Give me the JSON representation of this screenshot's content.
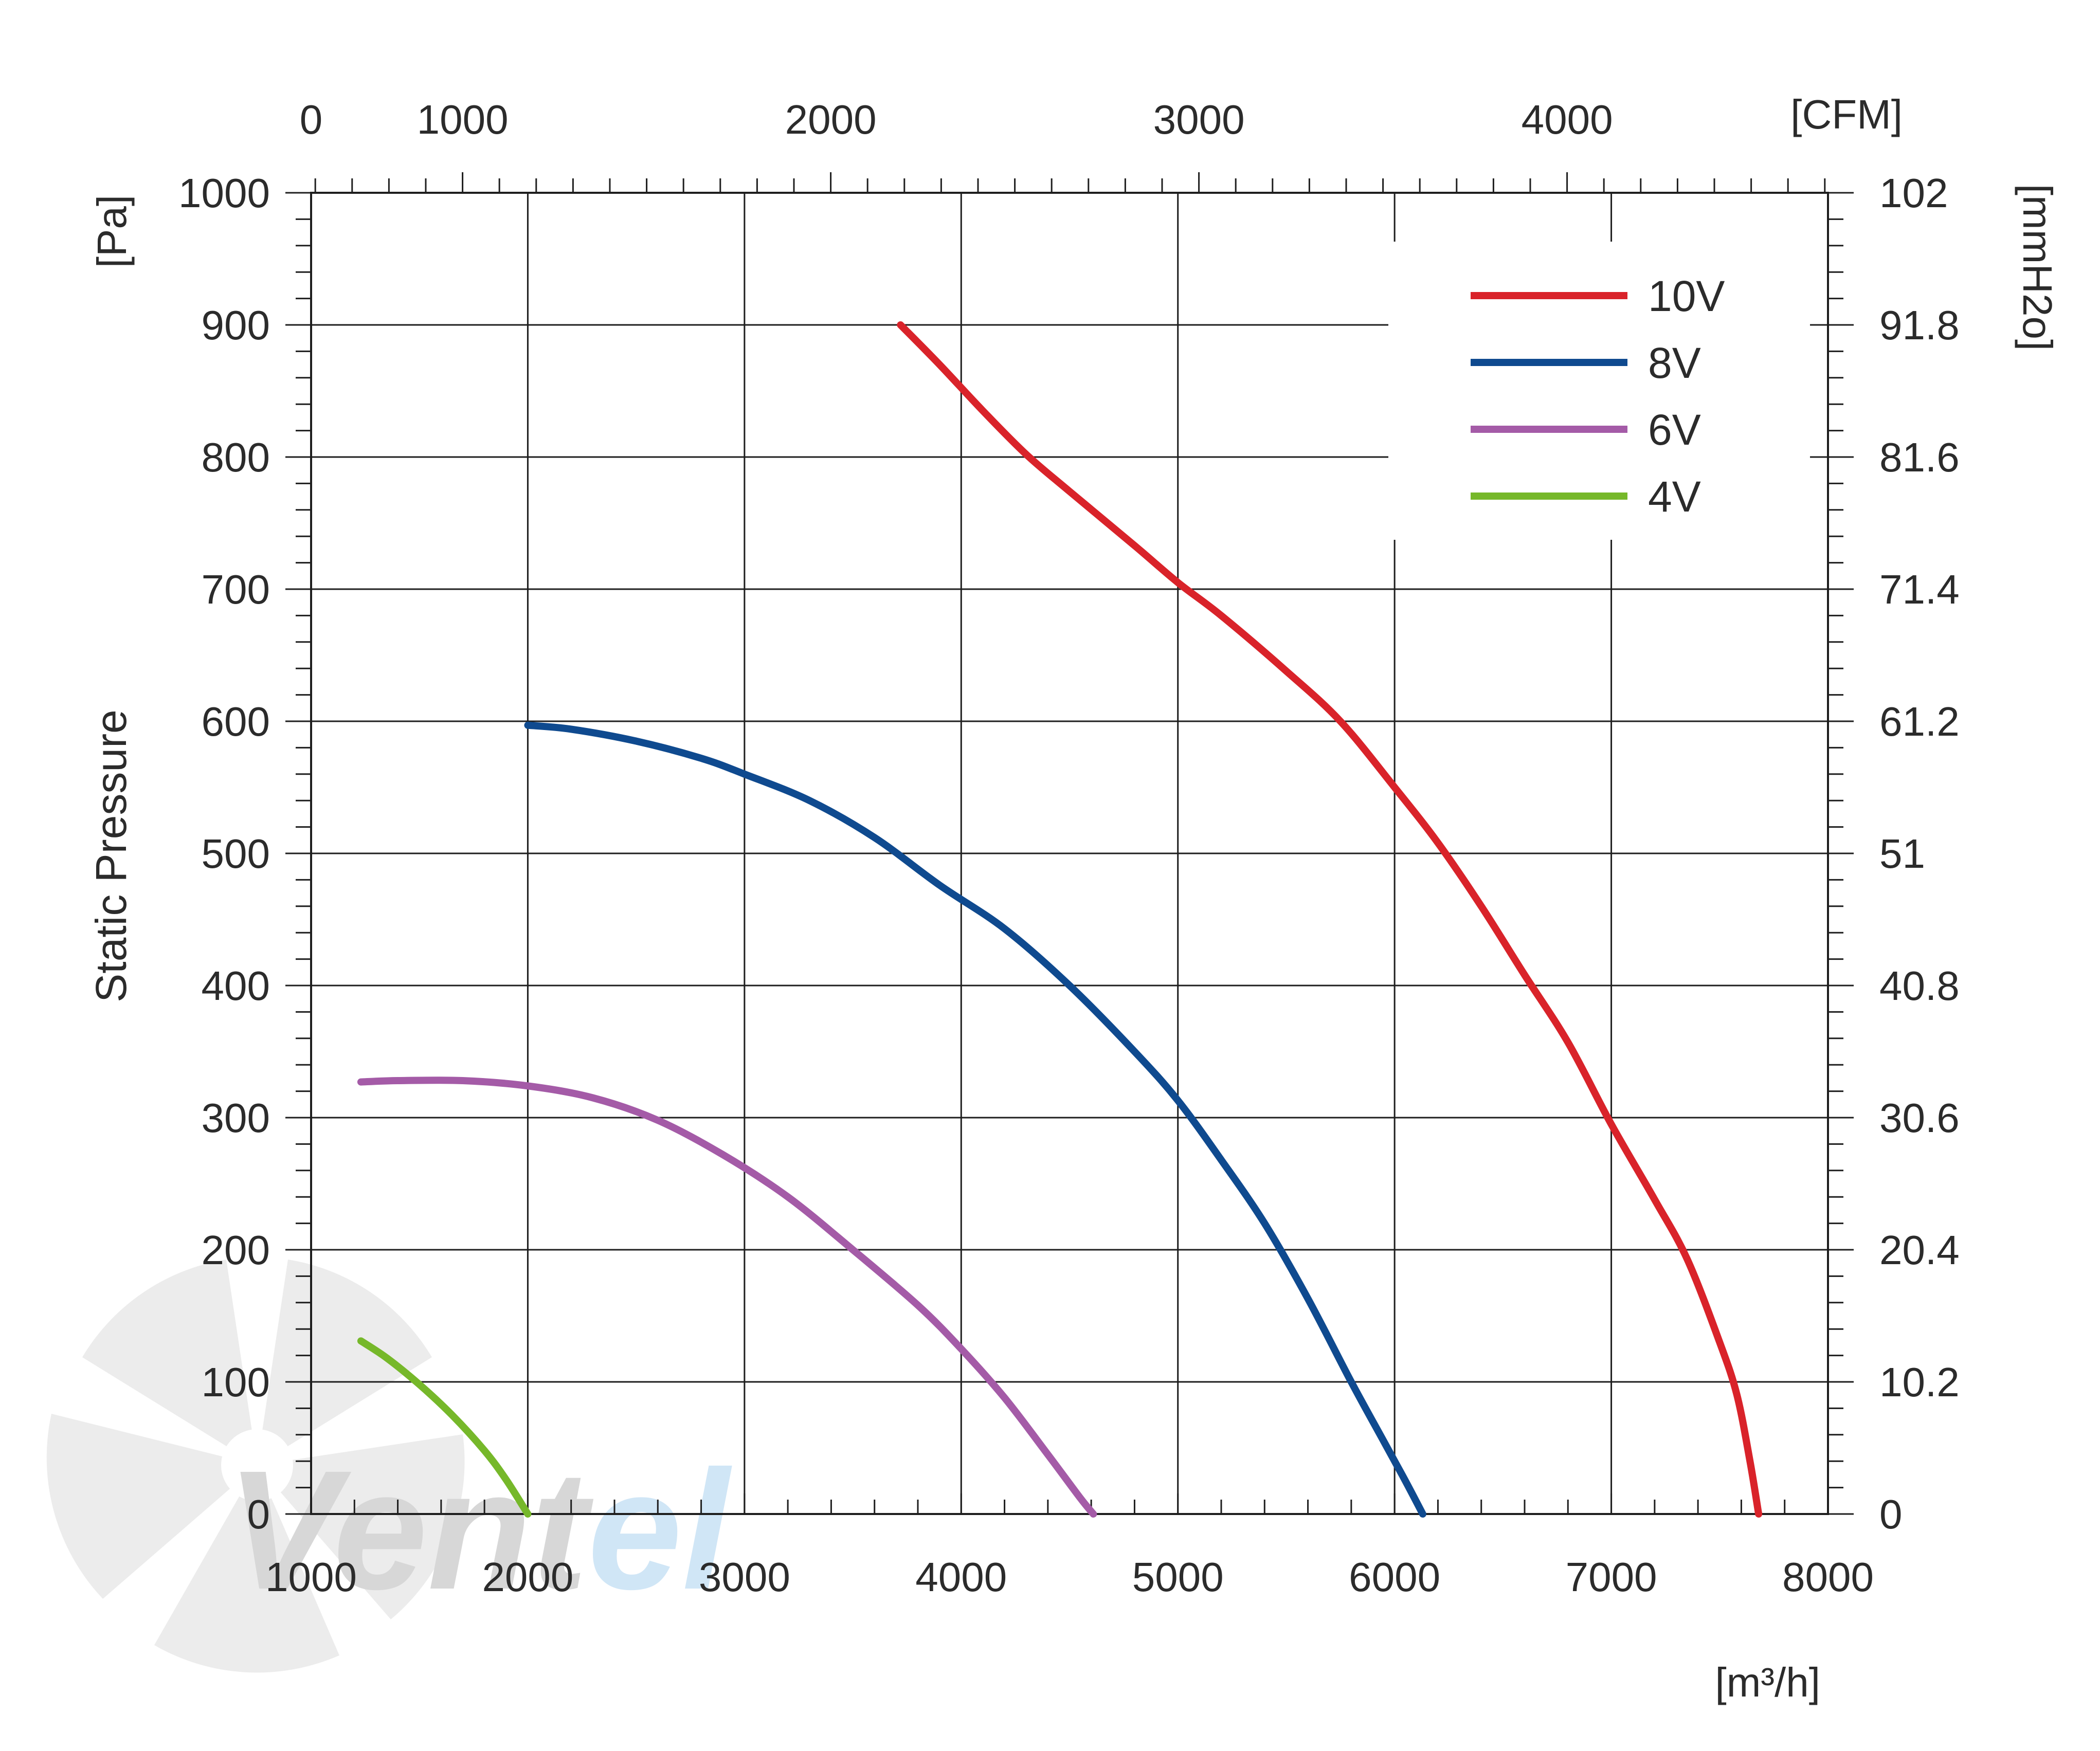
{
  "chart_data": {
    "type": "line",
    "title": "",
    "xlabel": "[m³/h]",
    "xlabel_top": "[CFM]",
    "ylabel": "Static Pressure",
    "ylabel_unit": "[Pa]",
    "ylabel_right": "[mmH2o]",
    "xlim": [
      1000,
      8000
    ],
    "ylim": [
      0,
      1000
    ],
    "x_ticks": [
      "1000",
      "2000",
      "3000",
      "4000",
      "5000",
      "6000",
      "7000",
      "8000"
    ],
    "x_tick_values": [
      1000,
      2000,
      3000,
      4000,
      5000,
      6000,
      7000,
      8000
    ],
    "x_top_ticks": [
      "0",
      "1000",
      "2000",
      "3000",
      "4000"
    ],
    "x_top_tick_values": [
      0,
      1000,
      2000,
      3000,
      4000
    ],
    "y_ticks": [
      "0",
      "100",
      "200",
      "300",
      "400",
      "500",
      "600",
      "700",
      "800",
      "900",
      "1000"
    ],
    "y_tick_values": [
      0,
      100,
      200,
      300,
      400,
      500,
      600,
      700,
      800,
      900,
      1000
    ],
    "y_right_ticks": [
      "0",
      "10.2",
      "20.4",
      "30.6",
      "40.8",
      "51",
      "61.2",
      "71.4",
      "81.6",
      "91.8",
      "102"
    ],
    "grid": true,
    "legend_position": "top-right",
    "series": [
      {
        "name": "10V",
        "color": "#d9232a",
        "x": [
          3720,
          3900,
          4100,
          4300,
          4500,
          4800,
          5000,
          5200,
          5500,
          5750,
          6000,
          6200,
          6400,
          6600,
          6800,
          7000,
          7200,
          7350,
          7500,
          7580,
          7640,
          7680
        ],
        "y": [
          900,
          870,
          835,
          802,
          774,
          733,
          705,
          680,
          638,
          600,
          550,
          508,
          460,
          408,
          357,
          295,
          238,
          193,
          130,
          90,
          40,
          0
        ]
      },
      {
        "name": "8V",
        "color": "#0f4a8f",
        "x": [
          2000,
          2200,
          2500,
          2800,
          3000,
          3300,
          3600,
          3900,
          4200,
          4500,
          4800,
          5000,
          5200,
          5400,
          5600,
          5800,
          5950,
          6050,
          6130
        ],
        "y": [
          597,
          594,
          585,
          572,
          560,
          540,
          512,
          476,
          443,
          400,
          350,
          313,
          268,
          220,
          163,
          100,
          55,
          25,
          0
        ]
      },
      {
        "name": "6V",
        "color": "#a45ba7",
        "x": [
          1230,
          1400,
          1700,
          2000,
          2300,
          2600,
          2900,
          3200,
          3500,
          3800,
          4000,
          4200,
          4400,
          4550,
          4610
        ],
        "y": [
          327,
          328,
          328,
          324,
          315,
          298,
          272,
          240,
          200,
          158,
          125,
          88,
          45,
          12,
          0
        ]
      },
      {
        "name": "4V",
        "color": "#76b82a",
        "x": [
          1230,
          1350,
          1500,
          1650,
          1800,
          1900,
          2000
        ],
        "y": [
          131,
          118,
          98,
          75,
          48,
          26,
          0
        ]
      }
    ]
  },
  "watermark": {
    "text_dark": "Vent",
    "text_light": "el",
    "icon": "fan-impeller-icon"
  }
}
